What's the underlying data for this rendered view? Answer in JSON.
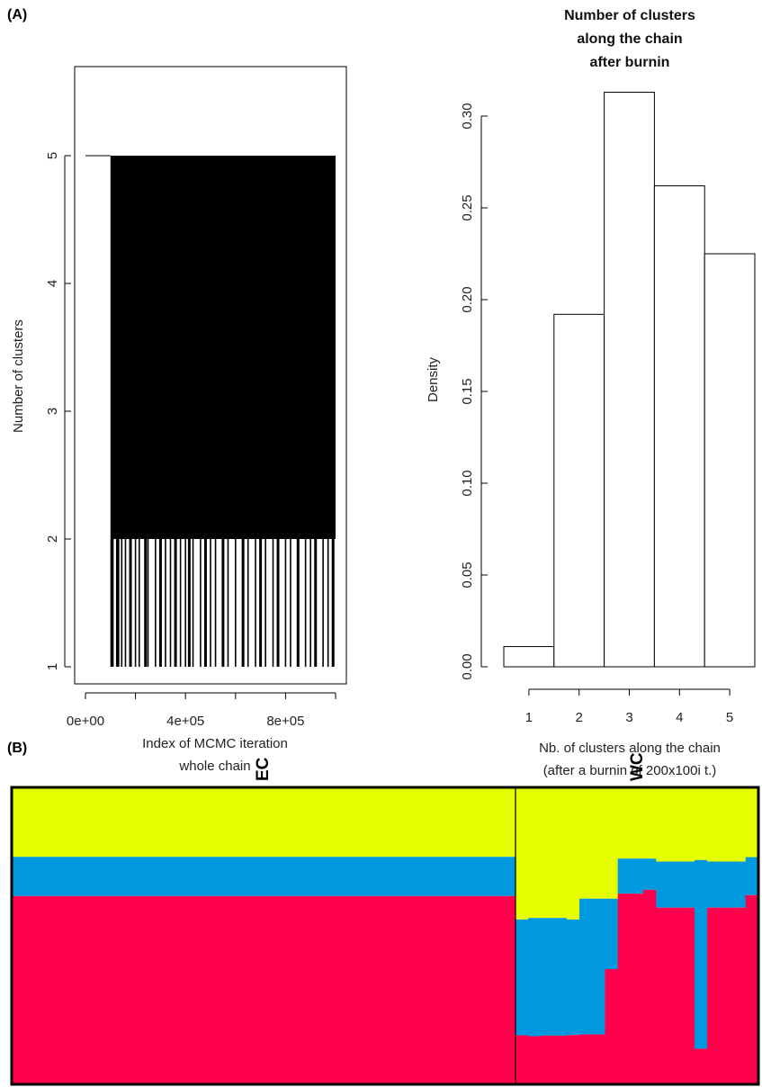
{
  "panels": {
    "a": "(A)",
    "b": "(B)"
  },
  "chart_data": [
    {
      "type": "line",
      "id": "trace",
      "title": "",
      "xlabel_lines": [
        "Index of MCMC iteration",
        "whole chain"
      ],
      "ylabel": "Number of clusters",
      "xlim": [
        0,
        1000000
      ],
      "ylim": [
        1,
        5
      ],
      "x_ticks": [
        0,
        200000,
        400000,
        600000,
        800000,
        1000000
      ],
      "x_tick_labels": [
        "0e+00",
        "",
        "4e+05",
        "",
        "8e+05",
        ""
      ],
      "y_ticks": [
        1,
        2,
        3,
        4,
        5
      ],
      "y_tick_labels": [
        "1",
        "2",
        "3",
        "4",
        "5"
      ],
      "burnin_segment": {
        "x": [
          0,
          100000
        ],
        "y": 5
      },
      "dense_region": {
        "x": [
          100000,
          1000000
        ],
        "y": [
          2,
          5
        ]
      },
      "drop_to_one_x": [
        105000,
        110000,
        125000,
        130000,
        145000,
        160000,
        180000,
        200000,
        215000,
        240000,
        250000,
        280000,
        300000,
        320000,
        340000,
        360000,
        380000,
        400000,
        415000,
        430000,
        460000,
        480000,
        500000,
        520000,
        550000,
        570000,
        600000,
        630000,
        650000,
        680000,
        700000,
        720000,
        750000,
        770000,
        800000,
        820000,
        850000,
        880000,
        900000,
        920000,
        950000,
        970000,
        990000
      ]
    },
    {
      "type": "bar",
      "id": "histogram",
      "title_lines": [
        "Number of clusters",
        "along the chain",
        "after burnin"
      ],
      "xlabel_lines": [
        "Nb. of clusters along the chain",
        "(after a burnin of 200x100i t.)"
      ],
      "ylabel": "Density",
      "categories": [
        "1",
        "2",
        "3",
        "4",
        "5"
      ],
      "values": [
        0.011,
        0.192,
        0.313,
        0.262,
        0.225
      ],
      "ylim": [
        0,
        0.3
      ],
      "y_ticks": [
        0.0,
        0.05,
        0.1,
        0.15,
        0.2,
        0.25,
        0.3
      ],
      "y_tick_labels": [
        "0.00",
        "0.05",
        "0.10",
        "0.15",
        "0.20",
        "0.25",
        "0.30"
      ]
    },
    {
      "type": "area",
      "id": "structure",
      "groups": [
        "EC",
        "WC"
      ],
      "colors": {
        "yellow": "#e6ff00",
        "blue": "#0099e0",
        "red": "#ff004c"
      },
      "ec_blue_top": 0.234,
      "ec_red_top": 0.366,
      "wc_individuals": [
        {
          "blue_top": 0.445,
          "red_top": 0.835
        },
        {
          "blue_top": 0.44,
          "red_top": 0.838
        },
        {
          "blue_top": 0.44,
          "red_top": 0.836
        },
        {
          "blue_top": 0.44,
          "red_top": 0.836
        },
        {
          "blue_top": 0.445,
          "red_top": 0.834
        },
        {
          "blue_top": 0.375,
          "red_top": 0.832
        },
        {
          "blue_top": 0.375,
          "red_top": 0.832
        },
        {
          "blue_top": 0.375,
          "red_top": 0.612
        },
        {
          "blue_top": 0.24,
          "red_top": 0.358
        },
        {
          "blue_top": 0.24,
          "red_top": 0.358
        },
        {
          "blue_top": 0.24,
          "red_top": 0.345
        },
        {
          "blue_top": 0.25,
          "red_top": 0.405
        },
        {
          "blue_top": 0.25,
          "red_top": 0.405
        },
        {
          "blue_top": 0.25,
          "red_top": 0.405
        },
        {
          "blue_top": 0.245,
          "red_top": 0.88
        },
        {
          "blue_top": 0.25,
          "red_top": 0.405
        },
        {
          "blue_top": 0.25,
          "red_top": 0.405
        },
        {
          "blue_top": 0.25,
          "red_top": 0.405
        },
        {
          "blue_top": 0.235,
          "red_top": 0.363
        }
      ]
    }
  ]
}
